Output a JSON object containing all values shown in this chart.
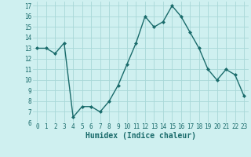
{
  "x": [
    0,
    1,
    2,
    3,
    4,
    5,
    6,
    7,
    8,
    9,
    10,
    11,
    12,
    13,
    14,
    15,
    16,
    17,
    18,
    19,
    20,
    21,
    22,
    23
  ],
  "y": [
    13,
    13,
    12.5,
    13.5,
    6.5,
    7.5,
    7.5,
    7,
    8,
    9.5,
    11.5,
    13.5,
    16,
    15,
    15.5,
    17,
    16,
    14.5,
    13,
    11,
    10,
    11,
    10.5,
    8.5
  ],
  "line_color": "#1a6b6b",
  "marker": "D",
  "marker_size": 2,
  "bg_color": "#cff0f0",
  "grid_color": "#a8d8d8",
  "xlabel": "Humidex (Indice chaleur)",
  "ylim": [
    6,
    17.4
  ],
  "xlim": [
    -0.5,
    23.5
  ],
  "yticks": [
    6,
    7,
    8,
    9,
    10,
    11,
    12,
    13,
    14,
    15,
    16,
    17
  ],
  "xticks": [
    0,
    1,
    2,
    3,
    4,
    5,
    6,
    7,
    8,
    9,
    10,
    11,
    12,
    13,
    14,
    15,
    16,
    17,
    18,
    19,
    20,
    21,
    22,
    23
  ],
  "tick_fontsize": 5.5,
  "xlabel_fontsize": 7,
  "line_width": 1.0
}
